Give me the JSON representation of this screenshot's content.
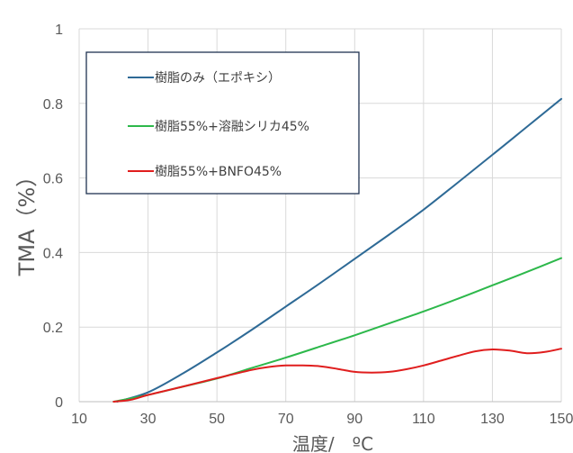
{
  "chart_data": {
    "type": "line",
    "xlabel": "温度/　ºC",
    "ylabel": "TMA（%）",
    "xlim": [
      10,
      150
    ],
    "ylim": [
      0,
      1
    ],
    "xticks": [
      "10",
      "30",
      "50",
      "70",
      "90",
      "110",
      "130",
      "150"
    ],
    "yticks": [
      "0",
      "0.2",
      "0.4",
      "0.6",
      "0.8",
      "1"
    ],
    "grid": true,
    "legend_position": "top-left",
    "series": [
      {
        "name": "樹脂のみ（エポキシ）",
        "color": "#2e6a96",
        "x": [
          21,
          30,
          40,
          50,
          60,
          70,
          80,
          90,
          100,
          110,
          120,
          130,
          140,
          150
        ],
        "y": [
          0,
          0.025,
          0.075,
          0.132,
          0.192,
          0.255,
          0.318,
          0.383,
          0.448,
          0.515,
          0.588,
          0.662,
          0.737,
          0.812
        ]
      },
      {
        "name": "樹脂55%+溶融シリカ45%",
        "color": "#2db84b",
        "x": [
          20,
          30,
          40,
          50,
          60,
          70,
          80,
          90,
          100,
          110,
          120,
          130,
          140,
          150
        ],
        "y": [
          0,
          0.018,
          0.04,
          0.062,
          0.09,
          0.118,
          0.148,
          0.178,
          0.21,
          0.242,
          0.276,
          0.312,
          0.348,
          0.385
        ]
      },
      {
        "name": "樹脂55%+BNFO45%",
        "color": "#e01e1e",
        "x": [
          20,
          25,
          30,
          40,
          50,
          60,
          65,
          70,
          75,
          80,
          85,
          90,
          95,
          100,
          105,
          110,
          115,
          120,
          125,
          130,
          135,
          140,
          145,
          150
        ],
        "y": [
          0,
          0.005,
          0.018,
          0.04,
          0.063,
          0.085,
          0.093,
          0.097,
          0.097,
          0.095,
          0.088,
          0.08,
          0.078,
          0.08,
          0.087,
          0.097,
          0.11,
          0.123,
          0.135,
          0.14,
          0.137,
          0.13,
          0.133,
          0.142
        ]
      }
    ]
  }
}
